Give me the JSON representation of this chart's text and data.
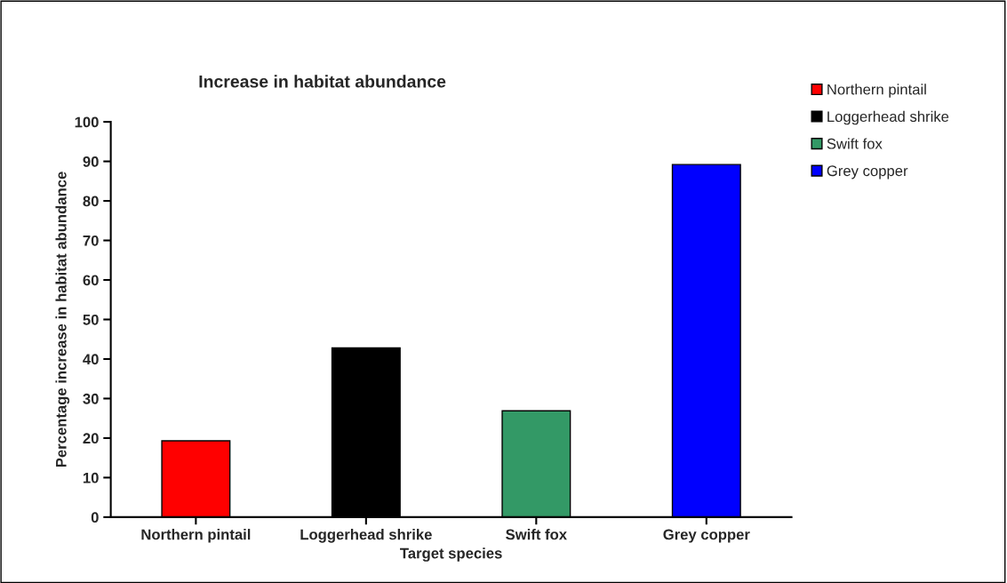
{
  "chart_data": {
    "type": "bar",
    "title": "Increase in habitat abundance",
    "xlabel": "Target species",
    "ylabel": "Percentage increase in habitat abundance",
    "categories": [
      "Northern pintail",
      "Loggerhead shrike",
      "Swift fox",
      "Grey copper"
    ],
    "series": [
      {
        "name": "Northern pintail",
        "color": "#ff0000",
        "values": [
          19.3,
          null,
          null,
          null
        ]
      },
      {
        "name": "Loggerhead shrike",
        "color": "#000000",
        "values": [
          null,
          42.8,
          null,
          null
        ]
      },
      {
        "name": "Swift fox",
        "color": "#339966",
        "values": [
          null,
          null,
          26.9,
          null
        ]
      },
      {
        "name": "Grey copper",
        "color": "#0000ff",
        "values": [
          null,
          null,
          null,
          89.2
        ]
      }
    ],
    "ylim": [
      0,
      100
    ],
    "yticks": [
      0,
      10,
      20,
      30,
      40,
      50,
      60,
      70,
      80,
      90,
      100
    ],
    "grid": false,
    "legend": "top right"
  }
}
